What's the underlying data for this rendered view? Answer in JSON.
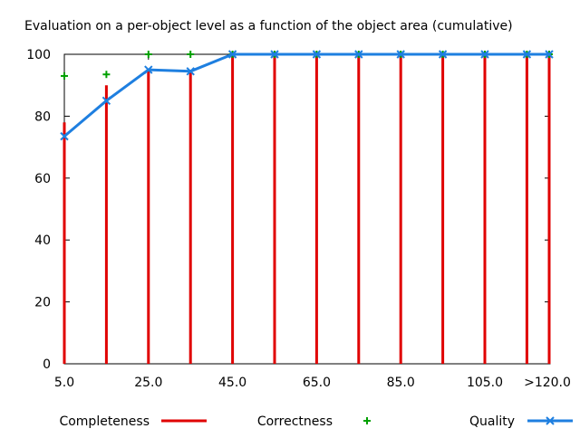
{
  "chart_data": {
    "type": "bar",
    "title": "Evaluation on a per-object level as a function of the object area (cumulative)",
    "xlabel": "",
    "ylabel": "",
    "ylim": [
      0,
      100
    ],
    "y_ticks": [
      "0",
      "20",
      "40",
      "60",
      "80",
      "100"
    ],
    "categories": [
      "5.0",
      "15.0",
      "25.0",
      "35.0",
      "45.0",
      "55.0",
      "65.0",
      "75.0",
      "85.0",
      "95.0",
      "105.0",
      "115.0",
      ">120.0"
    ],
    "x_tick_labels": [
      "5.0",
      "25.0",
      "45.0",
      "65.0",
      "85.0",
      "105.0",
      ">120.0"
    ],
    "grid": false,
    "legend_position": "bottom",
    "series": [
      {
        "name": "Completeness",
        "style": "impulses",
        "color": "#e00000",
        "values": [
          78,
          90,
          95,
          95,
          100,
          100,
          100,
          100,
          100,
          100,
          100,
          100,
          100
        ]
      },
      {
        "name": "Correctness",
        "style": "points",
        "color": "#00a000",
        "values": [
          93,
          93.5,
          100,
          100,
          100,
          100,
          100,
          100,
          100,
          100,
          100,
          100,
          100
        ]
      },
      {
        "name": "Quality",
        "style": "linespoints",
        "color": "#1e7fe0",
        "values": [
          73.5,
          85,
          95,
          94.5,
          100,
          100,
          100,
          100,
          100,
          100,
          100,
          100,
          100
        ]
      }
    ]
  }
}
